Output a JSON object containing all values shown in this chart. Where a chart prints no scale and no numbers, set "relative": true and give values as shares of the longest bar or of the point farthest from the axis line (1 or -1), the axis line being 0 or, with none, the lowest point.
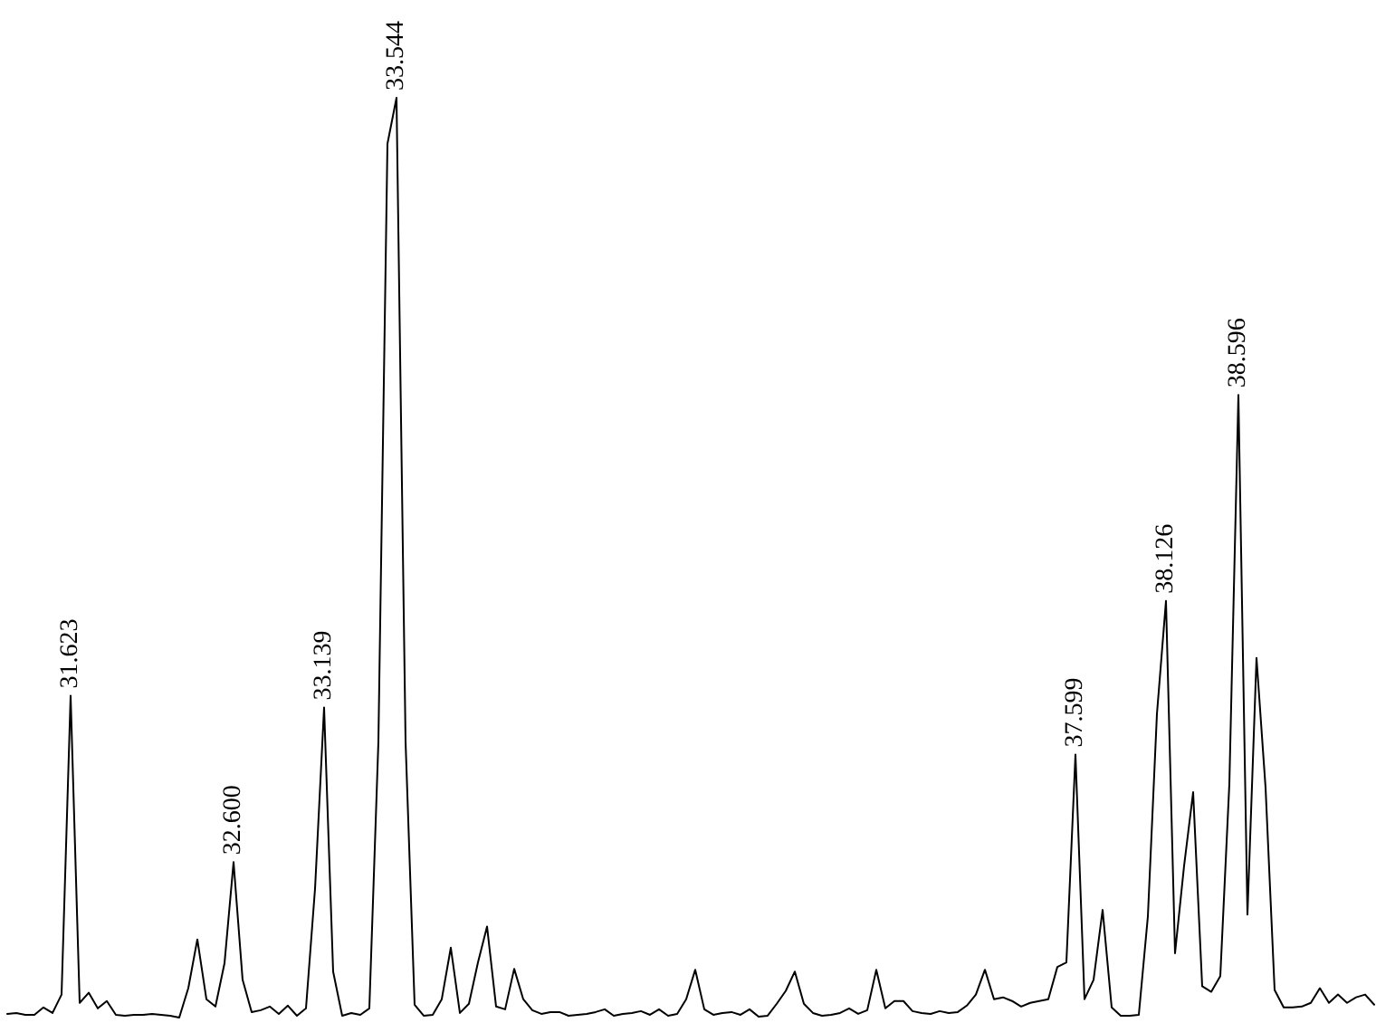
{
  "chart_data": {
    "type": "line",
    "relative": true,
    "tick_labels": false,
    "categories": [
      null,
      null,
      null,
      null,
      null,
      null,
      null,
      null,
      null,
      null,
      null,
      null,
      null,
      null,
      null,
      null,
      null,
      null,
      null,
      null,
      null,
      null,
      null,
      null,
      null,
      null,
      null,
      null,
      null,
      null,
      null,
      null,
      null,
      null,
      null,
      null,
      null,
      null,
      null,
      null,
      null,
      null,
      null,
      null,
      null,
      null,
      null,
      null,
      null,
      null,
      null,
      null,
      null,
      null,
      null,
      null,
      null,
      null,
      null,
      null,
      null,
      null,
      null,
      null,
      null,
      null,
      null,
      null,
      null,
      null,
      null,
      null,
      null,
      null,
      null,
      null,
      null,
      null,
      null,
      null,
      null,
      null,
      null,
      null,
      null,
      null,
      null,
      null,
      null,
      null,
      null,
      null,
      null,
      null,
      null,
      null,
      null,
      null,
      null,
      null,
      null,
      null,
      null,
      null,
      null,
      null,
      null,
      null,
      null,
      null,
      null,
      null,
      null,
      null,
      null,
      null,
      null,
      null,
      null,
      null,
      null,
      null,
      null,
      null,
      null,
      null,
      null,
      null,
      null,
      null,
      null,
      null,
      null,
      null,
      null,
      null,
      null,
      null,
      null,
      null,
      null,
      null,
      null,
      null,
      null,
      null,
      null,
      null,
      null,
      null,
      null,
      null
    ],
    "series": [
      {
        "color": "#000000",
        "values": [
          0.004,
          0.005,
          0.003,
          0.003,
          0.011,
          0.005,
          0.025,
          0.35,
          0.016,
          0.027,
          0.01,
          0.018,
          0.003,
          0.002,
          0.003,
          0.003,
          0.004,
          0.003,
          0.002,
          0,
          0.032,
          0.085,
          0.02,
          0.012,
          0.059,
          0.169,
          0.041,
          0.006,
          0.008,
          0.012,
          0.004,
          0.013,
          0.002,
          0.01,
          0.14,
          0.337,
          0.05,
          0.002,
          0.005,
          0.003,
          0.01,
          0.3,
          0.95,
          1,
          0.3,
          0.014,
          0.002,
          0.003,
          0.02,
          0.076,
          0.005,
          0.015,
          0.06,
          0.099,
          0.012,
          0.009,
          0.053,
          0.02,
          0.008,
          0.004,
          0.006,
          0.006,
          0.002,
          0.003,
          0.004,
          0.006,
          0.009,
          0.002,
          0.004,
          0.005,
          0.007,
          0.003,
          0.009,
          0.002,
          0.004,
          0.02,
          0.052,
          0.009,
          0.003,
          0.005,
          0.006,
          0.003,
          0.009,
          0.001,
          0.002,
          0.015,
          0.029,
          0.05,
          0.015,
          0.005,
          0.002,
          0.003,
          0.005,
          0.01,
          0.004,
          0.008,
          0.052,
          0.01,
          0.018,
          0.018,
          0.007,
          0.005,
          0.004,
          0.007,
          0.005,
          0.006,
          0.013,
          0.025,
          0.052,
          0.02,
          0.022,
          0.018,
          0.012,
          0.016,
          0.018,
          0.02,
          0.055,
          0.06,
          0.286,
          0.02,
          0.041,
          0.117,
          0.011,
          0.002,
          0.002,
          0.003,
          0.11,
          0.33,
          0.453,
          0.07,
          0.165,
          0.245,
          0.034,
          0.028,
          0.045,
          0.254,
          0.677,
          0.112,
          0.391,
          0.25,
          0.03,
          0.011,
          0.011,
          0.012,
          0.016,
          0.032,
          0.016,
          0.025,
          0.016,
          0.022,
          0.025,
          0.014
        ]
      }
    ],
    "annotations": [
      {
        "text": "31.623",
        "y": 0.35
      },
      {
        "text": "32.600",
        "y": 0.169
      },
      {
        "text": "33.139",
        "y": 0.337
      },
      {
        "text": "33.544",
        "y": 1
      },
      {
        "text": "37.599",
        "y": 0.286
      },
      {
        "text": "38.126",
        "y": 0.453
      },
      {
        "text": "38.596",
        "y": 0.677
      }
    ]
  }
}
